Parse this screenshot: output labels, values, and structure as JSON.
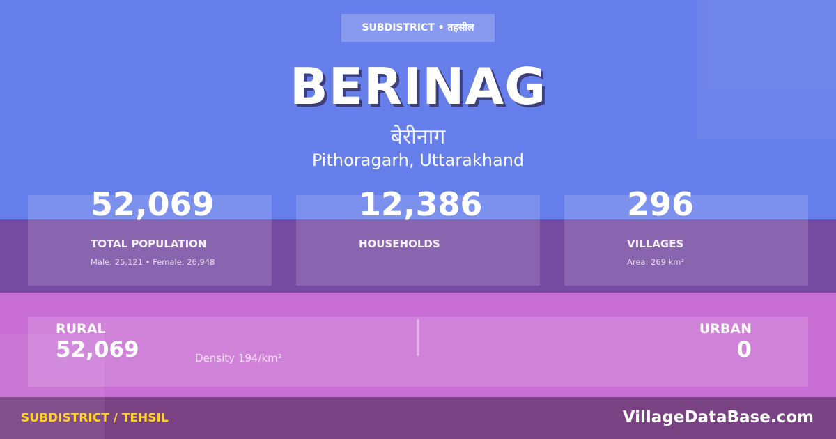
{
  "badge": "SUBDISTRICT • तहसील",
  "title": "BERINAG",
  "title_hindi": "बेरीनाग",
  "location": "Pithoragarh, Uttarakhand",
  "stats": [
    {
      "value": "52,069",
      "label": "TOTAL POPULATION",
      "sub": "Male: 25,121 • Female: 26,948"
    },
    {
      "value": "12,386",
      "label": "HOUSEHOLDS",
      "sub": ""
    },
    {
      "value": "296",
      "label": "VILLAGES",
      "sub": "Area: 269 km²"
    }
  ],
  "rural": {
    "label": "RURAL",
    "value": "52,069"
  },
  "density": "Density 194/km²",
  "urban": {
    "label": "URBAN",
    "value": "0"
  },
  "footer": {
    "left": "SUBDISTRICT / TEHSIL",
    "brand": "VillageDataBase.com"
  },
  "colors": {
    "top": "#667eea",
    "mid": "#764ba2",
    "pink": "#c86dd3",
    "footer": "#784283",
    "accent": "#ffd21f"
  }
}
